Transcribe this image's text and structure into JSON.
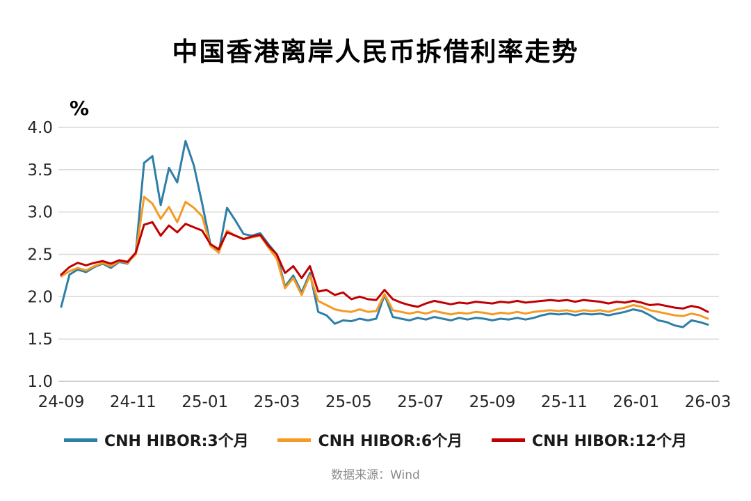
{
  "title": "中国香港离岸人民币拆借利率走势",
  "source": "数据来源：Wind",
  "chart_data": {
    "type": "line",
    "title": "中国香港离岸人民币拆借利率走势",
    "xlabel": "",
    "ylabel": "%",
    "ylim": [
      1.0,
      4.0
    ],
    "yticks": [
      1.0,
      1.5,
      2.0,
      2.5,
      3.0,
      3.5,
      4.0
    ],
    "xticklabels": [
      "24-09",
      "24-11",
      "25-01",
      "25-03",
      "25-05",
      "25-07",
      "25-09",
      "25-11",
      "26-01",
      "26-03"
    ],
    "grid": true,
    "legend_position": "bottom",
    "grid_color": "#d9d9d9",
    "series": [
      {
        "name": "CNH HIBOR:3个月",
        "color": "#2E7FA7",
        "values": [
          1.88,
          2.26,
          2.32,
          2.29,
          2.35,
          2.39,
          2.34,
          2.41,
          2.39,
          2.52,
          3.58,
          3.66,
          3.08,
          3.52,
          3.35,
          3.84,
          3.55,
          3.1,
          2.62,
          2.52,
          3.05,
          2.9,
          2.74,
          2.72,
          2.75,
          2.62,
          2.5,
          2.12,
          2.25,
          2.05,
          2.28,
          1.82,
          1.78,
          1.68,
          1.72,
          1.71,
          1.74,
          1.72,
          1.74,
          2.02,
          1.76,
          1.74,
          1.72,
          1.75,
          1.73,
          1.76,
          1.74,
          1.72,
          1.75,
          1.73,
          1.75,
          1.74,
          1.72,
          1.74,
          1.73,
          1.75,
          1.73,
          1.75,
          1.78,
          1.8,
          1.79,
          1.8,
          1.78,
          1.8,
          1.79,
          1.8,
          1.78,
          1.8,
          1.82,
          1.85,
          1.83,
          1.78,
          1.72,
          1.7,
          1.66,
          1.64,
          1.72,
          1.7,
          1.67
        ]
      },
      {
        "name": "CNH HIBOR:6个月",
        "color": "#F59A23",
        "values": [
          2.24,
          2.3,
          2.34,
          2.31,
          2.36,
          2.4,
          2.36,
          2.42,
          2.4,
          2.5,
          3.18,
          3.1,
          2.92,
          3.06,
          2.88,
          3.12,
          3.05,
          2.95,
          2.6,
          2.52,
          2.78,
          2.72,
          2.68,
          2.7,
          2.72,
          2.58,
          2.45,
          2.1,
          2.22,
          2.02,
          2.25,
          1.95,
          1.9,
          1.85,
          1.83,
          1.82,
          1.85,
          1.82,
          1.83,
          2.03,
          1.84,
          1.82,
          1.8,
          1.82,
          1.8,
          1.83,
          1.81,
          1.79,
          1.81,
          1.8,
          1.82,
          1.81,
          1.79,
          1.81,
          1.8,
          1.82,
          1.8,
          1.82,
          1.83,
          1.84,
          1.83,
          1.84,
          1.82,
          1.84,
          1.83,
          1.84,
          1.82,
          1.85,
          1.87,
          1.9,
          1.88,
          1.84,
          1.82,
          1.8,
          1.78,
          1.77,
          1.8,
          1.78,
          1.74
        ]
      },
      {
        "name": "CNH HIBOR:12个月",
        "color": "#C00000",
        "values": [
          2.26,
          2.35,
          2.4,
          2.37,
          2.4,
          2.42,
          2.39,
          2.43,
          2.41,
          2.52,
          2.85,
          2.88,
          2.72,
          2.84,
          2.76,
          2.86,
          2.82,
          2.78,
          2.62,
          2.56,
          2.76,
          2.72,
          2.68,
          2.71,
          2.73,
          2.6,
          2.5,
          2.28,
          2.36,
          2.22,
          2.36,
          2.06,
          2.08,
          2.02,
          2.05,
          1.97,
          2.0,
          1.97,
          1.96,
          2.08,
          1.97,
          1.93,
          1.9,
          1.88,
          1.92,
          1.95,
          1.93,
          1.91,
          1.93,
          1.92,
          1.94,
          1.93,
          1.92,
          1.94,
          1.93,
          1.95,
          1.93,
          1.94,
          1.95,
          1.96,
          1.95,
          1.96,
          1.94,
          1.96,
          1.95,
          1.94,
          1.92,
          1.94,
          1.93,
          1.95,
          1.93,
          1.9,
          1.91,
          1.89,
          1.87,
          1.86,
          1.89,
          1.87,
          1.82
        ]
      }
    ]
  }
}
